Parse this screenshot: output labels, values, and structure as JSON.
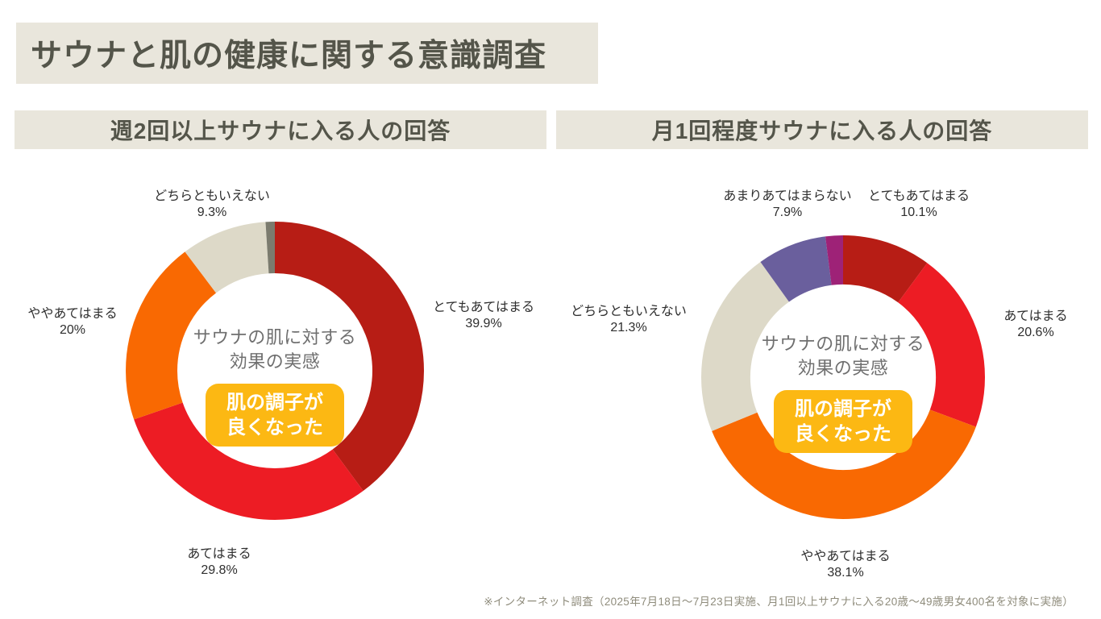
{
  "page_title": "サウナと肌の健康に関する意識調査",
  "footer_note": "※インターネット調査（2025年7月18日〜7月23日実施、月1回以上サウナに入る20歳〜49歳男女400名を対象に実施）",
  "center": {
    "title_line1": "サウナの肌に対する",
    "title_line2": "効果の実感",
    "badge_line1": "肌の調子が",
    "badge_line2": "良くなった",
    "badge_color": "#fcb813"
  },
  "colors": {
    "banner_bg": "#e9e6dc",
    "heading_text": "#54554a",
    "very_applies": "#b71d15",
    "applies": "#ed1c24",
    "somewhat_applies": "#f96902",
    "neither": "#ddd9c8",
    "left_sliver_gray": "#7b7b6e",
    "not_much": "#6a5f9d",
    "right_sliver_magenta": "#9e2277",
    "badge_yellow": "#fcb813",
    "footer_text": "#8f8c7c"
  },
  "chart_data": [
    {
      "type": "pie",
      "subtype": "donut",
      "title": "週2回以上サウナに入る人の回答",
      "center_label": "サウナの肌に対する効果の実感",
      "center_badge": "肌の調子が良くなった",
      "start_angle_deg": 0,
      "direction": "clockwise",
      "segments": [
        {
          "label": "とてもあてはまる",
          "value": 39.9,
          "display": "39.9%",
          "color": "#b71d15"
        },
        {
          "label": "あてはまる",
          "value": 29.8,
          "display": "29.8%",
          "color": "#ed1c24"
        },
        {
          "label": "ややあてはまる",
          "value": 20,
          "display": "20%",
          "color": "#f96902"
        },
        {
          "label": "どちらともいえない",
          "value": 9.3,
          "display": "9.3%",
          "color": "#ddd9c8"
        },
        {
          "label": "",
          "value": 1.0,
          "display": "",
          "color": "#7b7b6e"
        }
      ]
    },
    {
      "type": "pie",
      "subtype": "donut",
      "title": "月1回程度サウナに入る人の回答",
      "center_label": "サウナの肌に対する効果の実感",
      "center_badge": "肌の調子が良くなった",
      "start_angle_deg": 0,
      "direction": "clockwise",
      "segments": [
        {
          "label": "とてもあてはまる",
          "value": 10.1,
          "display": "10.1%",
          "color": "#b71d15"
        },
        {
          "label": "あてはまる",
          "value": 20.6,
          "display": "20.6%",
          "color": "#ed1c24"
        },
        {
          "label": "ややあてはまる",
          "value": 38.1,
          "display": "38.1%",
          "color": "#f96902"
        },
        {
          "label": "どちらともいえない",
          "value": 21.3,
          "display": "21.3%",
          "color": "#ddd9c8"
        },
        {
          "label": "あまりあてはまらない",
          "value": 7.9,
          "display": "7.9%",
          "color": "#6a5f9d"
        },
        {
          "label": "",
          "value": 2.0,
          "display": "",
          "color": "#9e2277"
        }
      ]
    }
  ]
}
